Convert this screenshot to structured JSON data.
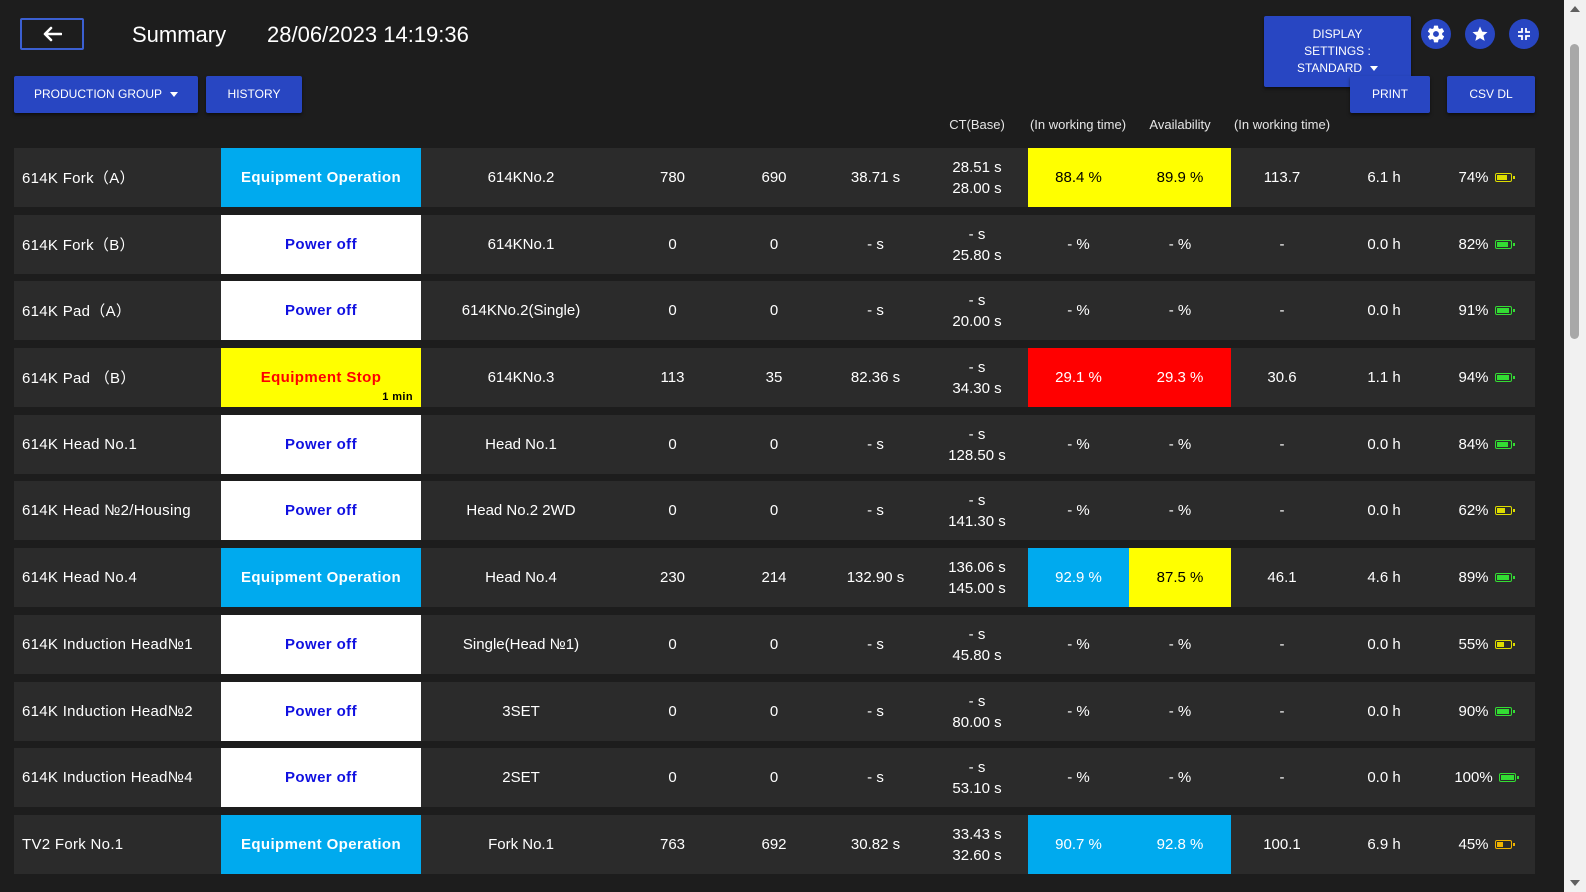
{
  "header": {
    "title": "Summary",
    "datetime": "28/06/2023 14:19:36"
  },
  "toolbar": {
    "production_group_label": "PRODUCTION GROUP",
    "history_label": "HISTORY",
    "display_settings_line1": "DISPLAY",
    "display_settings_line2": "SETTINGS :",
    "display_settings_line3": "STANDARD",
    "print_label": "PRINT",
    "csv_label": "CSV DL"
  },
  "icons": {
    "back": "arrow-left-icon",
    "settings": "gear-icon",
    "favorite": "star-icon",
    "compress": "compress-icon"
  },
  "columns": {
    "ct_base": "CT(Base)",
    "working_time_1": "(In working time)",
    "availability": "Availability",
    "working_time_2": "(In working time)"
  },
  "colors": {
    "accent": "#2846c2",
    "operation": "#00aaee",
    "stop": "#ffff00",
    "alarm": "#ff0000",
    "power_off_text": "#1010e0",
    "stop_text": "#ff0000",
    "battery_green": "#33dd33",
    "battery_yellow": "#dddd00",
    "battery_orange": "#f0b400"
  },
  "rows": [
    {
      "name": "614K Fork（A）",
      "status": "Equipment Operation",
      "status_type": "operation",
      "duration": "",
      "model": "614KNo.2",
      "plan": "780",
      "actual": "690",
      "ct": "38.71 s",
      "ct_base_1": "28.51 s",
      "ct_base_2": "28.00 s",
      "rate": "88.4 %",
      "rate_color": "yellow",
      "avail": "89.9 %",
      "avail_color": "yellow",
      "working": "113.7",
      "hours": "6.1 h",
      "battery": "74%",
      "battery_level": 74,
      "battery_color": "yellow"
    },
    {
      "name": "614K Fork（B）",
      "status": "Power off",
      "status_type": "off",
      "duration": "",
      "model": "614KNo.1",
      "plan": "0",
      "actual": "0",
      "ct": "- s",
      "ct_base_1": "- s",
      "ct_base_2": "25.80 s",
      "rate": "- %",
      "rate_color": "none",
      "avail": "- %",
      "avail_color": "none",
      "working": "-",
      "hours": "0.0 h",
      "battery": "82%",
      "battery_level": 82,
      "battery_color": "green"
    },
    {
      "name": "614K Pad（A）",
      "status": "Power off",
      "status_type": "off",
      "duration": "",
      "model": "614KNo.2(Single)",
      "plan": "0",
      "actual": "0",
      "ct": "- s",
      "ct_base_1": "- s",
      "ct_base_2": "20.00 s",
      "rate": "- %",
      "rate_color": "none",
      "avail": "- %",
      "avail_color": "none",
      "working": "-",
      "hours": "0.0 h",
      "battery": "91%",
      "battery_level": 91,
      "battery_color": "green"
    },
    {
      "name": "614K Pad （B）",
      "status": "Equipment Stop",
      "status_type": "stop",
      "duration": "1 min",
      "model": "614KNo.3",
      "plan": "113",
      "actual": "35",
      "ct": "82.36 s",
      "ct_base_1": "- s",
      "ct_base_2": "34.30 s",
      "rate": "29.1 %",
      "rate_color": "red",
      "avail": "29.3 %",
      "avail_color": "red",
      "working": "30.6",
      "hours": "1.1 h",
      "battery": "94%",
      "battery_level": 94,
      "battery_color": "green"
    },
    {
      "name": "614K Head No.1",
      "status": "Power off",
      "status_type": "off",
      "duration": "",
      "model": "Head No.1",
      "plan": "0",
      "actual": "0",
      "ct": "- s",
      "ct_base_1": "- s",
      "ct_base_2": "128.50 s",
      "rate": "- %",
      "rate_color": "none",
      "avail": "- %",
      "avail_color": "none",
      "working": "-",
      "hours": "0.0 h",
      "battery": "84%",
      "battery_level": 84,
      "battery_color": "green"
    },
    {
      "name": "614K Head №2/Housing",
      "status": "Power off",
      "status_type": "off",
      "duration": "",
      "model": "Head No.2 2WD",
      "plan": "0",
      "actual": "0",
      "ct": "- s",
      "ct_base_1": "- s",
      "ct_base_2": "141.30 s",
      "rate": "- %",
      "rate_color": "none",
      "avail": "- %",
      "avail_color": "none",
      "working": "-",
      "hours": "0.0 h",
      "battery": "62%",
      "battery_level": 62,
      "battery_color": "yellow"
    },
    {
      "name": "614K Head No.4",
      "status": "Equipment Operation",
      "status_type": "operation",
      "duration": "",
      "model": "Head No.4",
      "plan": "230",
      "actual": "214",
      "ct": "132.90 s",
      "ct_base_1": "136.06 s",
      "ct_base_2": "145.00 s",
      "rate": "92.9 %",
      "rate_color": "blue",
      "avail": "87.5 %",
      "avail_color": "yellow",
      "working": "46.1",
      "hours": "4.6 h",
      "battery": "89%",
      "battery_level": 89,
      "battery_color": "green"
    },
    {
      "name": "614K Induction Head№1",
      "status": "Power off",
      "status_type": "off",
      "duration": "",
      "model": "Single(Head №1)",
      "plan": "0",
      "actual": "0",
      "ct": "- s",
      "ct_base_1": "- s",
      "ct_base_2": "45.80 s",
      "rate": "- %",
      "rate_color": "none",
      "avail": "- %",
      "avail_color": "none",
      "working": "-",
      "hours": "0.0 h",
      "battery": "55%",
      "battery_level": 55,
      "battery_color": "yellow"
    },
    {
      "name": "614K Induction Head№2",
      "status": "Power off",
      "status_type": "off",
      "duration": "",
      "model": "3SET",
      "plan": "0",
      "actual": "0",
      "ct": "- s",
      "ct_base_1": "- s",
      "ct_base_2": "80.00 s",
      "rate": "- %",
      "rate_color": "none",
      "avail": "- %",
      "avail_color": "none",
      "working": "-",
      "hours": "0.0 h",
      "battery": "90%",
      "battery_level": 90,
      "battery_color": "green"
    },
    {
      "name": "614K Induction Head№4",
      "status": "Power off",
      "status_type": "off",
      "duration": "",
      "model": "2SET",
      "plan": "0",
      "actual": "0",
      "ct": "- s",
      "ct_base_1": "- s",
      "ct_base_2": "53.10 s",
      "rate": "- %",
      "rate_color": "none",
      "avail": "- %",
      "avail_color": "none",
      "working": "-",
      "hours": "0.0 h",
      "battery": "100%",
      "battery_level": 100,
      "battery_color": "green"
    },
    {
      "name": "TV2 Fork No.1",
      "status": "Equipment Operation",
      "status_type": "operation",
      "duration": "",
      "model": "Fork No.1",
      "plan": "763",
      "actual": "692",
      "ct": "30.82 s",
      "ct_base_1": "33.43 s",
      "ct_base_2": "32.60 s",
      "rate": "90.7 %",
      "rate_color": "blue",
      "avail": "92.8 %",
      "avail_color": "blue",
      "working": "100.1",
      "hours": "6.9 h",
      "battery": "45%",
      "battery_level": 45,
      "battery_color": "orange"
    }
  ]
}
